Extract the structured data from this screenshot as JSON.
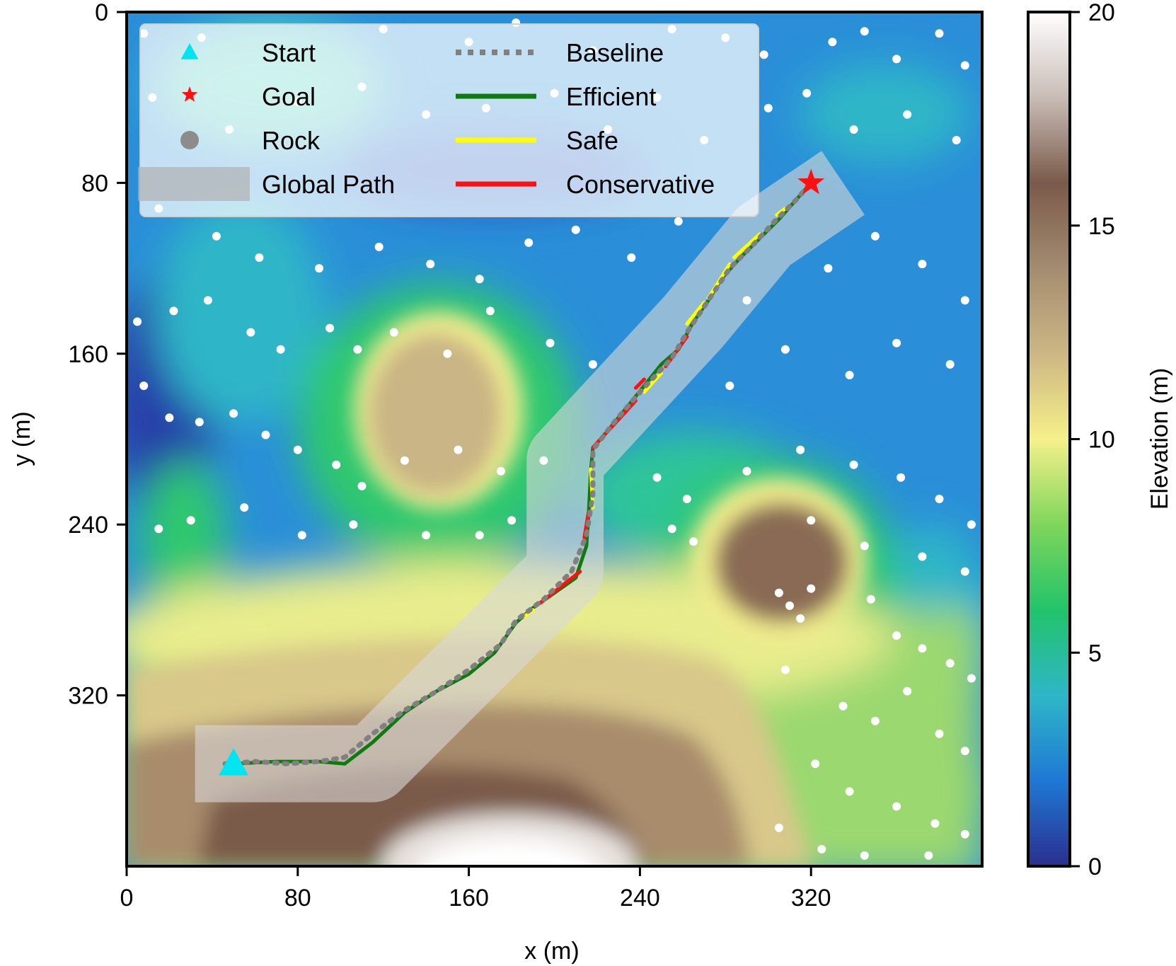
{
  "chart_data": {
    "type": "heatmap",
    "title": "",
    "xlabel": "x (m)",
    "ylabel": "y (m)",
    "xlim": [
      0,
      400
    ],
    "ylim": [
      400,
      0
    ],
    "xticks": [
      0,
      80,
      160,
      240,
      320
    ],
    "yticks": [
      0,
      80,
      160,
      240,
      320
    ],
    "grid": false,
    "legend_position": "top-left",
    "colorbar": {
      "label": "Elevation (m)",
      "range": [
        0,
        20
      ],
      "ticks": [
        0,
        5,
        10,
        15,
        20
      ],
      "colors": [
        "#2b2f8f",
        "#1f78d4",
        "#2fb6c8",
        "#22c36a",
        "#7fd65c",
        "#f5f08a",
        "#cdb684",
        "#a48c70",
        "#7a5a4a",
        "#c9bcb6",
        "#ffffff"
      ]
    },
    "legend": [
      {
        "label": "Start",
        "kind": "marker-triangle",
        "color": "#00e5f0"
      },
      {
        "label": "Goal",
        "kind": "marker-star",
        "color": "#ff1010"
      },
      {
        "label": "Rock",
        "kind": "marker-circle",
        "color": "#8c8c8c"
      },
      {
        "label": "Global Path",
        "kind": "band",
        "color": "#b0b0b0"
      },
      {
        "label": "Baseline",
        "kind": "dotted-line",
        "color": "#808080"
      },
      {
        "label": "Efficient",
        "kind": "line",
        "color": "#0f7a0f"
      },
      {
        "label": "Safe",
        "kind": "line",
        "color": "#ffff00"
      },
      {
        "label": "Conservative",
        "kind": "line",
        "color": "#ff1010"
      }
    ],
    "start": {
      "x": 50,
      "y": 352
    },
    "goal": {
      "x": 320,
      "y": 80
    },
    "global_path": [
      [
        32,
        352
      ],
      [
        115,
        352
      ],
      [
        205,
        262
      ],
      [
        205,
        210
      ],
      [
        265,
        145
      ],
      [
        298,
        105
      ],
      [
        335,
        80
      ]
    ],
    "global_path_width": 36,
    "baseline": [
      [
        46,
        352
      ],
      [
        60,
        351
      ],
      [
        75,
        352
      ],
      [
        90,
        351
      ],
      [
        102,
        349
      ],
      [
        115,
        338
      ],
      [
        130,
        327
      ],
      [
        145,
        318
      ],
      [
        160,
        308
      ],
      [
        175,
        296
      ],
      [
        182,
        285
      ],
      [
        195,
        275
      ],
      [
        208,
        262
      ],
      [
        215,
        245
      ],
      [
        218,
        226
      ],
      [
        218,
        205
      ],
      [
        228,
        192
      ],
      [
        240,
        178
      ],
      [
        255,
        162
      ],
      [
        262,
        150
      ],
      [
        272,
        135
      ],
      [
        282,
        120
      ],
      [
        292,
        110
      ],
      [
        303,
        98
      ],
      [
        313,
        88
      ],
      [
        320,
        80
      ]
    ],
    "efficient": [
      [
        50,
        352
      ],
      [
        70,
        351
      ],
      [
        90,
        351
      ],
      [
        102,
        352
      ],
      [
        115,
        342
      ],
      [
        130,
        328
      ],
      [
        145,
        318
      ],
      [
        160,
        310
      ],
      [
        172,
        300
      ],
      [
        182,
        286
      ],
      [
        190,
        279
      ],
      [
        200,
        272
      ],
      [
        210,
        265
      ],
      [
        215,
        250
      ],
      [
        216,
        235
      ],
      [
        217,
        215
      ],
      [
        218,
        204
      ],
      [
        225,
        196
      ],
      [
        238,
        180
      ],
      [
        250,
        165
      ],
      [
        258,
        158
      ],
      [
        265,
        145
      ],
      [
        272,
        135
      ],
      [
        278,
        125
      ],
      [
        287,
        115
      ],
      [
        295,
        107
      ],
      [
        305,
        97
      ],
      [
        313,
        88
      ],
      [
        320,
        80
      ]
    ],
    "safe_segments": [
      [
        [
          217,
          214
        ],
        [
          218,
          232
        ]
      ],
      [
        [
          242,
          178
        ],
        [
          250,
          169
        ]
      ],
      [
        [
          262,
          146
        ],
        [
          270,
          136
        ]
      ],
      [
        [
          272,
          134
        ],
        [
          282,
          118
        ]
      ],
      [
        [
          284,
          115
        ],
        [
          296,
          104
        ]
      ],
      [
        [
          304,
          95
        ],
        [
          308,
          92
        ]
      ],
      [
        [
          186,
          283
        ],
        [
          190,
          280
        ]
      ]
    ],
    "conservative_segments": [
      [
        [
          218,
          204
        ],
        [
          238,
          182
        ]
      ],
      [
        [
          252,
          166
        ],
        [
          262,
          152
        ]
      ],
      [
        [
          214,
          246
        ],
        [
          216,
          234
        ]
      ],
      [
        [
          193,
          277
        ],
        [
          212,
          262
        ]
      ],
      [
        [
          238,
          176
        ],
        [
          242,
          172
        ]
      ]
    ],
    "rocks": [
      [
        8,
        10
      ],
      [
        35,
        12
      ],
      [
        120,
        8
      ],
      [
        160,
        14
      ],
      [
        182,
        5
      ],
      [
        218,
        18
      ],
      [
        255,
        8
      ],
      [
        280,
        12
      ],
      [
        298,
        20
      ],
      [
        330,
        14
      ],
      [
        345,
        9
      ],
      [
        360,
        22
      ],
      [
        380,
        10
      ],
      [
        392,
        25
      ],
      [
        12,
        40
      ],
      [
        48,
        55
      ],
      [
        80,
        42
      ],
      [
        110,
        35
      ],
      [
        140,
        48
      ],
      [
        168,
        45
      ],
      [
        200,
        38
      ],
      [
        225,
        55
      ],
      [
        248,
        40
      ],
      [
        270,
        60
      ],
      [
        300,
        45
      ],
      [
        318,
        38
      ],
      [
        340,
        55
      ],
      [
        365,
        48
      ],
      [
        388,
        60
      ],
      [
        15,
        92
      ],
      [
        42,
        105
      ],
      [
        62,
        115
      ],
      [
        90,
        120
      ],
      [
        118,
        110
      ],
      [
        142,
        118
      ],
      [
        165,
        125
      ],
      [
        188,
        108
      ],
      [
        210,
        102
      ],
      [
        236,
        115
      ],
      [
        258,
        98
      ],
      [
        290,
        135
      ],
      [
        328,
        120
      ],
      [
        350,
        105
      ],
      [
        372,
        118
      ],
      [
        392,
        135
      ],
      [
        5,
        145
      ],
      [
        22,
        140
      ],
      [
        38,
        135
      ],
      [
        58,
        150
      ],
      [
        72,
        158
      ],
      [
        95,
        148
      ],
      [
        108,
        158
      ],
      [
        125,
        150
      ],
      [
        150,
        160
      ],
      [
        170,
        140
      ],
      [
        198,
        155
      ],
      [
        218,
        165
      ],
      [
        282,
        175
      ],
      [
        308,
        158
      ],
      [
        338,
        170
      ],
      [
        360,
        155
      ],
      [
        385,
        165
      ],
      [
        8,
        175
      ],
      [
        20,
        190
      ],
      [
        34,
        192
      ],
      [
        50,
        188
      ],
      [
        65,
        198
      ],
      [
        80,
        205
      ],
      [
        98,
        212
      ],
      [
        110,
        222
      ],
      [
        130,
        210
      ],
      [
        155,
        205
      ],
      [
        175,
        215
      ],
      [
        195,
        210
      ],
      [
        248,
        218
      ],
      [
        262,
        228
      ],
      [
        290,
        215
      ],
      [
        315,
        205
      ],
      [
        340,
        212
      ],
      [
        362,
        218
      ],
      [
        380,
        228
      ],
      [
        395,
        240
      ],
      [
        15,
        242
      ],
      [
        30,
        238
      ],
      [
        55,
        232
      ],
      [
        82,
        245
      ],
      [
        106,
        240
      ],
      [
        140,
        245
      ],
      [
        165,
        245
      ],
      [
        180,
        238
      ],
      [
        255,
        242
      ],
      [
        265,
        248
      ],
      [
        320,
        238
      ],
      [
        345,
        250
      ],
      [
        372,
        255
      ],
      [
        392,
        262
      ],
      [
        305,
        272
      ],
      [
        310,
        278
      ],
      [
        315,
        284
      ],
      [
        320,
        270
      ],
      [
        348,
        275
      ],
      [
        360,
        292
      ],
      [
        372,
        298
      ],
      [
        385,
        305
      ],
      [
        395,
        312
      ],
      [
        308,
        308
      ],
      [
        335,
        325
      ],
      [
        350,
        332
      ],
      [
        365,
        318
      ],
      [
        380,
        338
      ],
      [
        392,
        346
      ],
      [
        322,
        352
      ],
      [
        338,
        365
      ],
      [
        360,
        372
      ],
      [
        378,
        380
      ],
      [
        392,
        385
      ],
      [
        305,
        382
      ],
      [
        325,
        392
      ],
      [
        345,
        395
      ],
      [
        375,
        395
      ]
    ]
  }
}
